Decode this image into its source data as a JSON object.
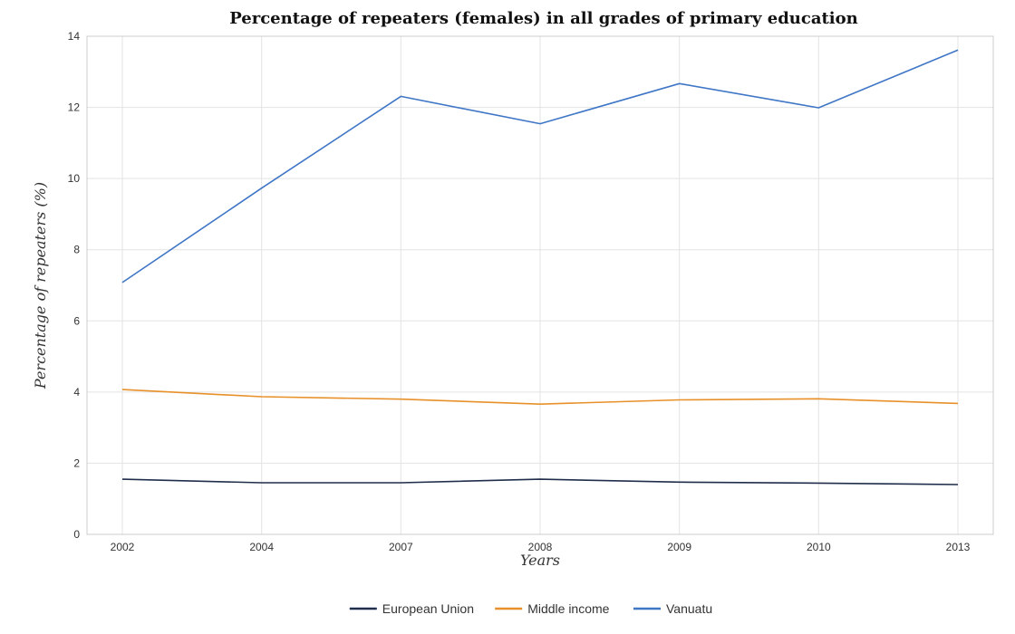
{
  "chart_data": {
    "type": "line",
    "title": "Percentage of repeaters (females) in all grades of primary education",
    "xlabel": "Years",
    "ylabel": "Percentage of repeaters (%)",
    "categories": [
      "2002",
      "2004",
      "2007",
      "2008",
      "2009",
      "2010",
      "2013"
    ],
    "ylim": [
      0,
      14
    ],
    "yticks": [
      0,
      2,
      4,
      6,
      8,
      10,
      12,
      14
    ],
    "grid": true,
    "legend_position": "bottom-center",
    "series": [
      {
        "name": "European Union",
        "color": "#1f2e4a",
        "values": [
          1.55,
          1.45,
          1.45,
          1.55,
          1.47,
          1.44,
          1.4
        ]
      },
      {
        "name": "Middle income",
        "color": "#e8902a",
        "values": [
          4.07,
          3.87,
          3.8,
          3.66,
          3.78,
          3.81,
          3.68
        ]
      },
      {
        "name": "Vanuatu",
        "color": "#3f76c6",
        "values": [
          7.08,
          9.73,
          12.31,
          11.54,
          12.67,
          11.99,
          13.61
        ]
      }
    ]
  }
}
